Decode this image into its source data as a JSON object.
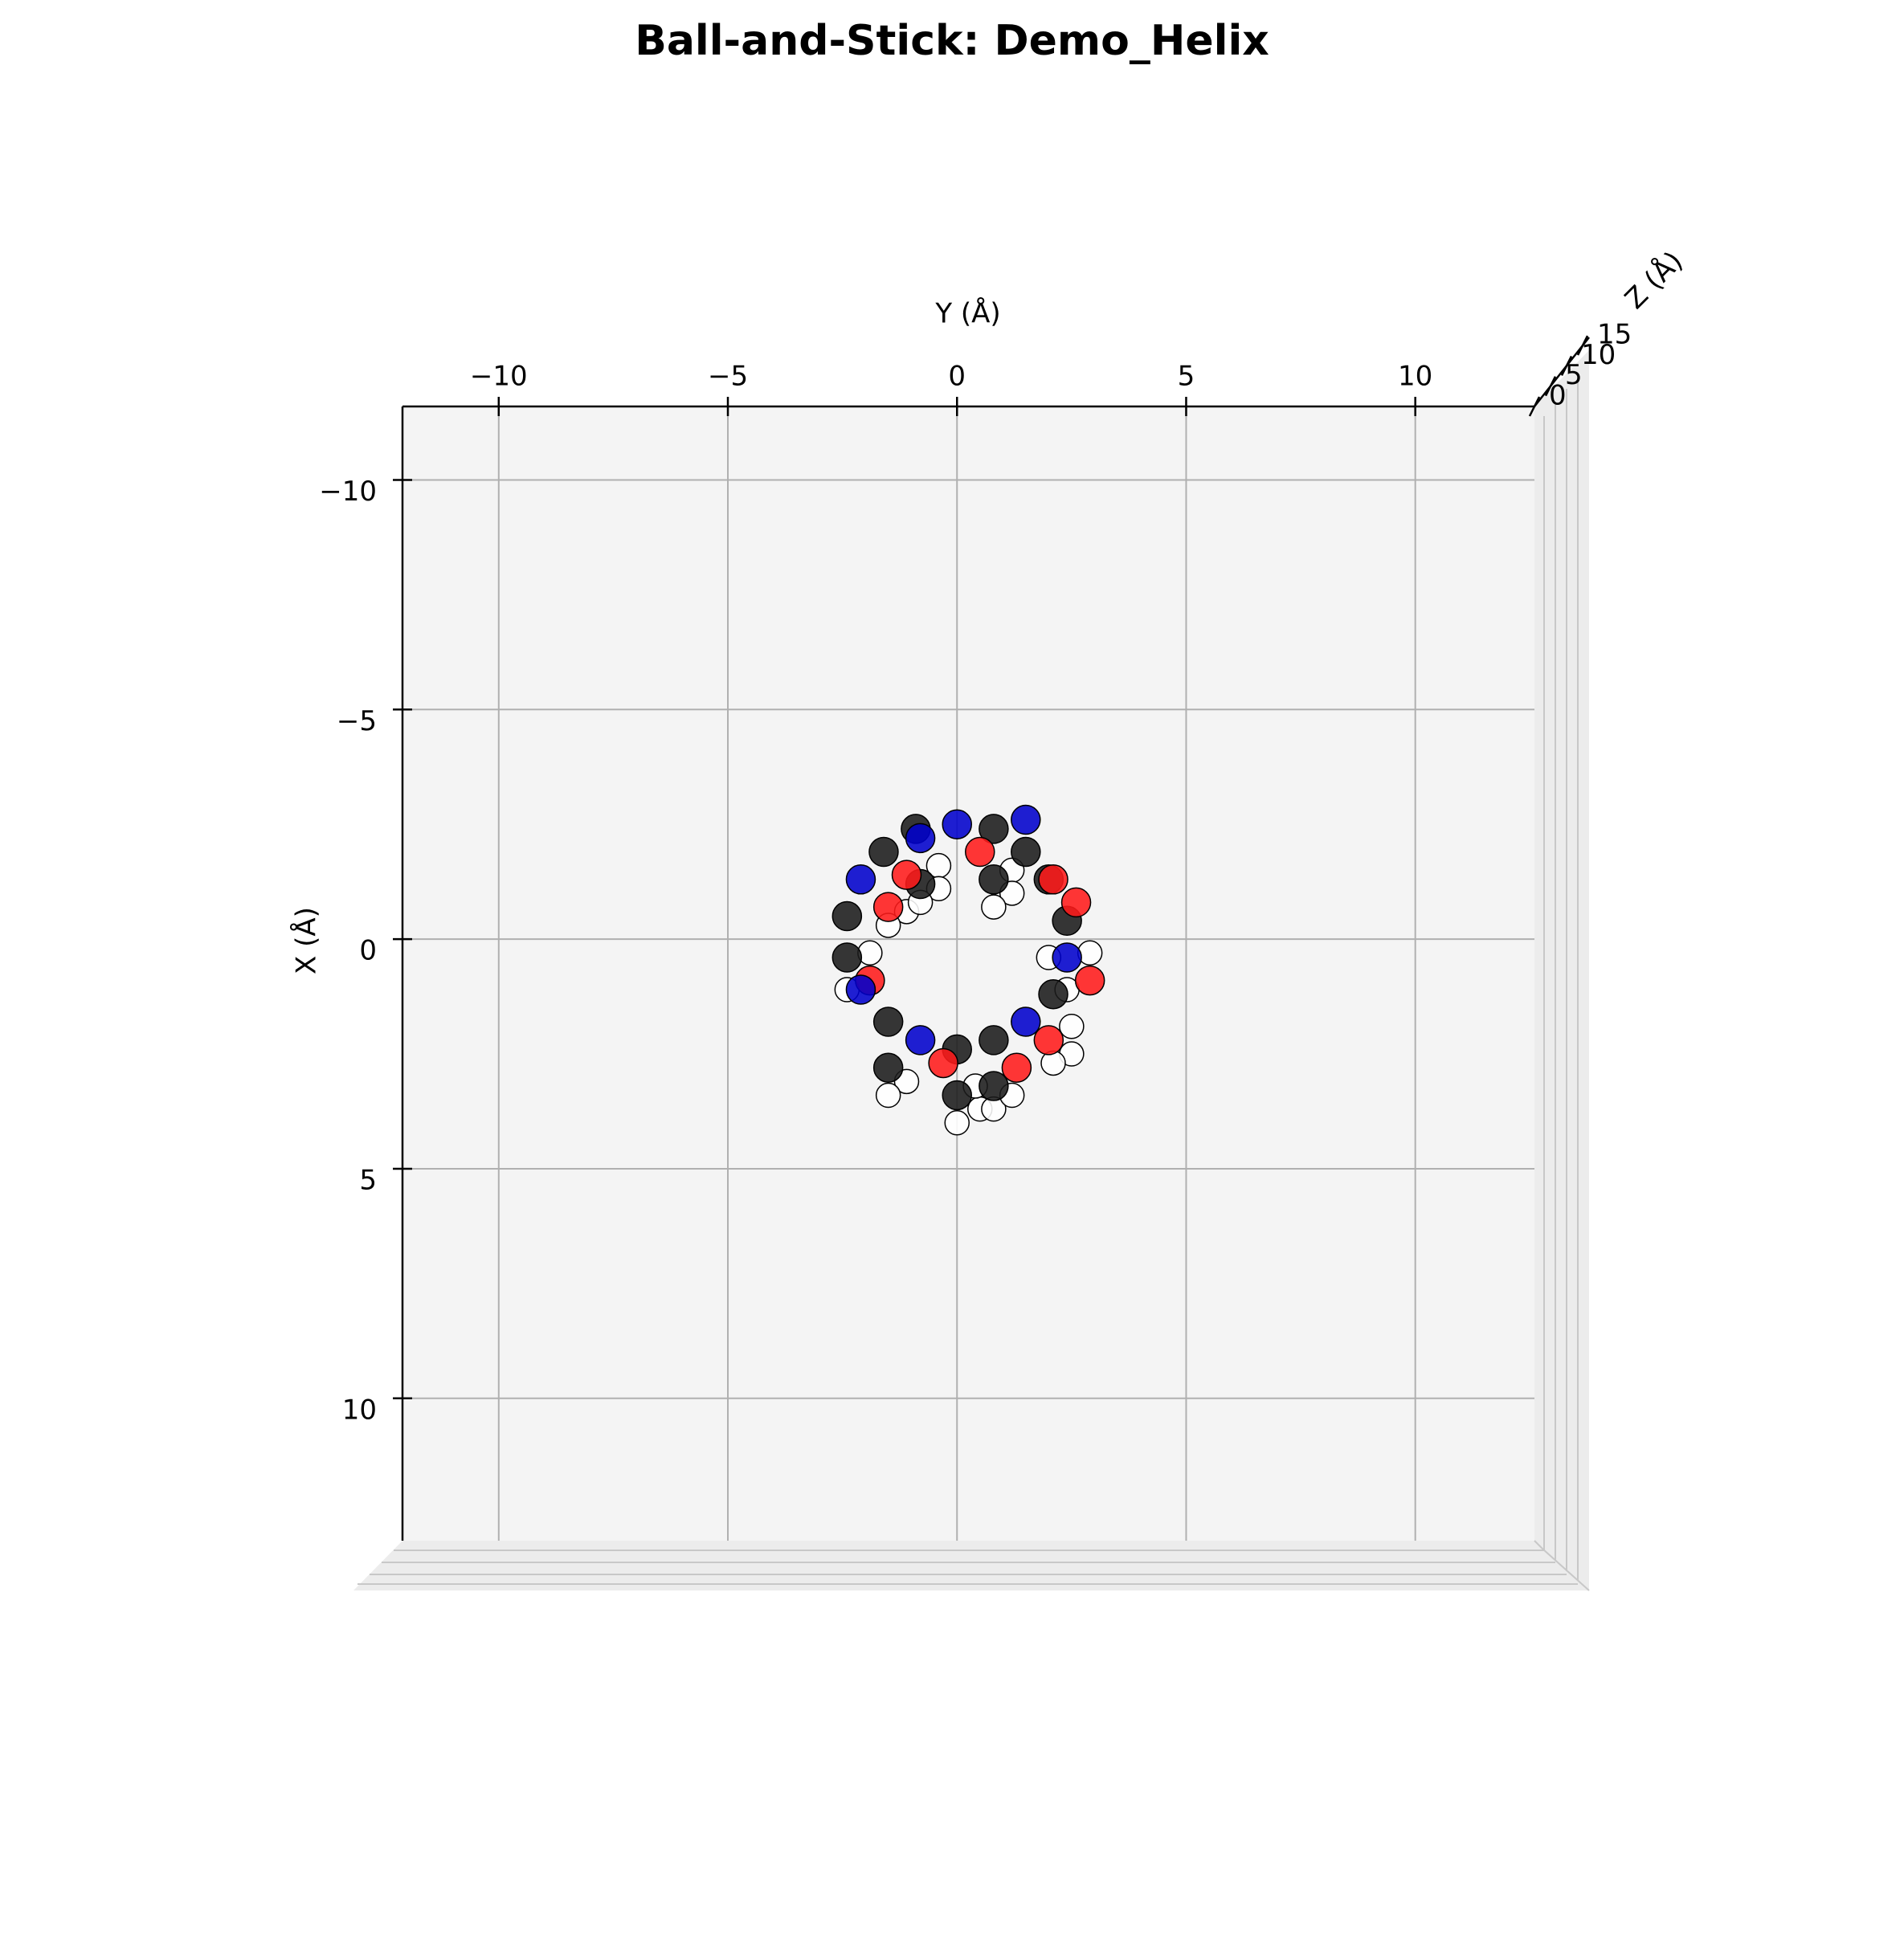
{
  "chart_data": {
    "type": "scatter",
    "title": "Ball-and-Stick: Demo_Helix",
    "xlabel": "Y (Å)",
    "ylabel": "X (Å)",
    "zlabel": "Z (Å)",
    "xlim": [
      -12.1,
      12.6
    ],
    "xticks": [
      {
        "value": -10,
        "label": "−10"
      },
      {
        "value": -5,
        "label": "−5"
      },
      0,
      5,
      10
    ],
    "ylim": [
      -11.6,
      13.1
    ],
    "y_inverted": true,
    "yticks": [
      {
        "value": -10,
        "label": "−10"
      },
      {
        "value": -5,
        "label": "−5"
      },
      0,
      5,
      10
    ],
    "zlim": [
      0,
      17
    ],
    "zticks": [
      0,
      5,
      10,
      15
    ],
    "grid": true,
    "series": [
      {
        "color": "#ffffff",
        "x": [
          -0.4,
          -0.4,
          -1.1,
          -0.8,
          -1.5,
          -1.9,
          -2.4,
          1.2,
          1.2,
          0.8,
          2.0,
          2.9,
          2.4,
          2.5,
          2.5,
          2.1,
          -1.1,
          -1.5,
          0,
          0.5,
          0.8,
          1.2,
          0.4
        ],
        "values": [
          -1.6,
          -1.1,
          -0.6,
          -0.8,
          -0.3,
          0.3,
          1.1,
          -1.5,
          -1.0,
          -0.7,
          0.4,
          0.3,
          1.1,
          1.9,
          2.5,
          2.7,
          3.1,
          3.4,
          4.0,
          3.7,
          3.7,
          3.4,
          3.2
        ]
      },
      {
        "color": "#1a1a1a",
        "x": [
          -0.9,
          0.8,
          -1.6,
          2.0,
          -2.4,
          -2.4,
          2.4,
          2.1,
          -1.5,
          0.8,
          0,
          -1.5,
          0,
          0.8,
          0.8,
          -0.8,
          1.5
        ],
        "values": [
          -2.4,
          -2.4,
          -1.9,
          -1.3,
          -0.5,
          0.4,
          -0.4,
          1.2,
          1.8,
          2.2,
          2.4,
          2.8,
          3.4,
          3.2,
          -1.3,
          -1.2,
          -1.9
        ]
      },
      {
        "color": "#ff1a1a",
        "x": [
          0.5,
          -1.1,
          -1.5,
          2.6,
          2.1,
          -1.9,
          -0.3,
          1.3,
          2.0,
          2.9
        ],
        "values": [
          -1.9,
          -1.4,
          -0.7,
          -0.8,
          -1.3,
          0.9,
          2.7,
          2.8,
          2.2,
          0.9
        ]
      },
      {
        "color": "#0000cc",
        "x": [
          0,
          -0.8,
          1.5,
          -2.1,
          2.4,
          -2.1,
          -0.8,
          1.5
        ],
        "values": [
          -2.5,
          -2.2,
          -2.6,
          -1.3,
          0.4,
          1.1,
          2.2,
          1.8
        ]
      }
    ]
  }
}
